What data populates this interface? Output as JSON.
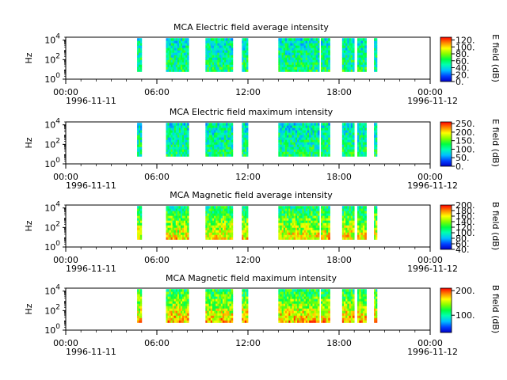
{
  "chart_data": [
    {
      "type": "heatmap",
      "title": "MCA  Electric field average intensity",
      "ylabel": "Hz",
      "colorbar_label": "E field (dB)",
      "colorbar_ticks": [
        "0.",
        "20.",
        "40.",
        "60.",
        "80.",
        "100.",
        "120."
      ],
      "colorbar_range": [
        0,
        128
      ],
      "yticks": [
        "10^0",
        "10^2",
        "10^4"
      ],
      "ylim": [
        1,
        20000
      ],
      "yscale": "log",
      "xticks": [
        "00:00",
        "06:00",
        "12:00",
        "18:00",
        "00:00"
      ],
      "xdate_left": "1996-11-11",
      "xdate_right": "1996-11-12",
      "xlim_hours": [
        0,
        24
      ],
      "data_intervals_hours": [
        [
          4.7,
          5.0
        ],
        [
          6.6,
          8.1
        ],
        [
          9.2,
          11.0
        ],
        [
          11.6,
          12.0
        ],
        [
          14.0,
          16.7
        ],
        [
          16.8,
          17.4
        ],
        [
          18.2,
          19.0
        ],
        [
          19.2,
          19.8
        ],
        [
          20.3,
          20.5
        ]
      ],
      "typical_value": 45
    },
    {
      "type": "heatmap",
      "title": "MCA  Electric field maximum intensity",
      "ylabel": "Hz",
      "colorbar_label": "E field (dB)",
      "colorbar_ticks": [
        "0.",
        "50.",
        "100.",
        "150.",
        "200.",
        "250."
      ],
      "colorbar_range": [
        0,
        260
      ],
      "yticks": [
        "10^0",
        "10^2",
        "10^4"
      ],
      "ylim": [
        1,
        20000
      ],
      "yscale": "log",
      "xticks": [
        "00:00",
        "06:00",
        "12:00",
        "18:00",
        "00:00"
      ],
      "xdate_left": "1996-11-11",
      "xdate_right": "1996-11-12",
      "xlim_hours": [
        0,
        24
      ],
      "data_intervals_hours": [
        [
          4.7,
          5.0
        ],
        [
          6.6,
          8.1
        ],
        [
          9.2,
          11.0
        ],
        [
          11.6,
          12.0
        ],
        [
          14.0,
          16.7
        ],
        [
          16.8,
          17.4
        ],
        [
          18.2,
          19.0
        ],
        [
          19.2,
          19.8
        ],
        [
          20.3,
          20.5
        ]
      ],
      "typical_value": 90
    },
    {
      "type": "heatmap",
      "title": "MCA  Magnetic field average intensity",
      "ylabel": "Hz",
      "colorbar_label": "B field (dB)",
      "colorbar_ticks": [
        "40.",
        "60.",
        "80.",
        "100.",
        "120.",
        "140.",
        "160.",
        "180.",
        "200."
      ],
      "colorbar_range": [
        40,
        200
      ],
      "yticks": [
        "10^0",
        "10^2",
        "10^4"
      ],
      "ylim": [
        1,
        20000
      ],
      "yscale": "log",
      "xticks": [
        "00:00",
        "06:00",
        "12:00",
        "18:00",
        "00:00"
      ],
      "xdate_left": "1996-11-11",
      "xdate_right": "1996-11-12",
      "xlim_hours": [
        0,
        24
      ],
      "data_intervals_hours": [
        [
          4.7,
          5.0
        ],
        [
          6.6,
          8.1
        ],
        [
          9.2,
          11.0
        ],
        [
          11.6,
          12.0
        ],
        [
          14.0,
          16.7
        ],
        [
          16.8,
          17.4
        ],
        [
          18.2,
          19.0
        ],
        [
          19.2,
          19.8
        ],
        [
          20.3,
          20.5
        ]
      ],
      "typical_value": 130
    },
    {
      "type": "heatmap",
      "title": "MCA  Magnetic field maximum intensity",
      "ylabel": "Hz",
      "colorbar_label": "B field (dB)",
      "colorbar_ticks": [
        "100.",
        "200."
      ],
      "colorbar_range": [
        30,
        210
      ],
      "yticks": [
        "10^0",
        "10^2",
        "10^4"
      ],
      "ylim": [
        1,
        20000
      ],
      "yscale": "log",
      "xticks": [
        "00:00",
        "06:00",
        "12:00",
        "18:00",
        "00:00"
      ],
      "xdate_left": "1996-11-11",
      "xdate_right": "1996-11-12",
      "xlim_hours": [
        0,
        24
      ],
      "data_intervals_hours": [
        [
          4.7,
          5.0
        ],
        [
          6.6,
          8.1
        ],
        [
          9.2,
          11.0
        ],
        [
          11.6,
          12.0
        ],
        [
          14.0,
          16.7
        ],
        [
          16.8,
          17.4
        ],
        [
          18.2,
          19.0
        ],
        [
          19.2,
          19.8
        ],
        [
          20.3,
          20.5
        ]
      ],
      "typical_value": 140
    }
  ]
}
